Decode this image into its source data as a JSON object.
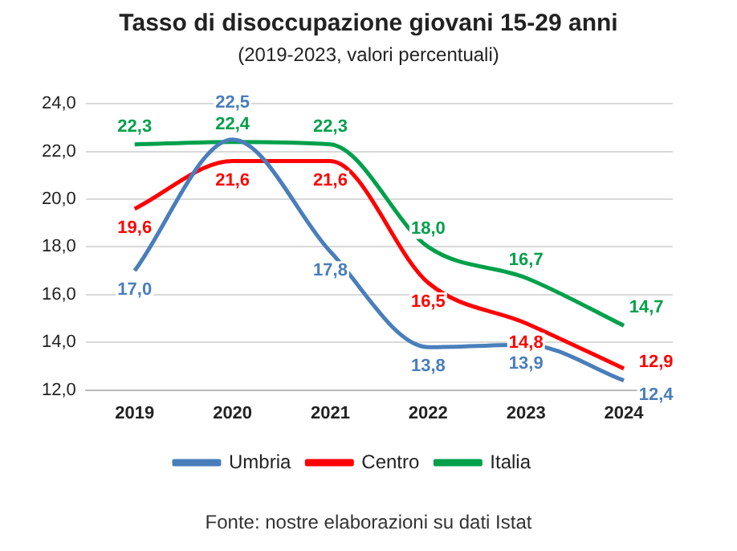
{
  "chart_data": {
    "type": "line",
    "title": "Tasso di disoccupazione giovani 15-29 anni",
    "subtitle": "(2019-2023, valori percentuali)",
    "categories": [
      "2019",
      "2020",
      "2021",
      "2022",
      "2023",
      "2024"
    ],
    "series": [
      {
        "name": "Umbria",
        "color": "#4a7ebb",
        "values": [
          17.0,
          22.5,
          17.8,
          13.8,
          13.9,
          12.4
        ],
        "value_labels": [
          "17,0",
          "22,5",
          "17,8",
          "13,8",
          "13,9",
          "12,4"
        ]
      },
      {
        "name": "Centro",
        "color": "#ff0000",
        "values": [
          19.6,
          21.6,
          21.6,
          16.5,
          14.8,
          12.9
        ],
        "value_labels": [
          "19,6",
          "21,6",
          "21,6",
          "16,5",
          "14,8",
          "12,9"
        ]
      },
      {
        "name": "Italia",
        "color": "#00a04b",
        "values": [
          22.3,
          22.4,
          22.3,
          18.0,
          16.7,
          14.7
        ],
        "value_labels": [
          "22,3",
          "22,4",
          "22,3",
          "18,0",
          "16,7",
          "14,7"
        ]
      }
    ],
    "ylim": [
      12,
      24
    ],
    "yticks": [
      {
        "value": 12,
        "label": "12,0"
      },
      {
        "value": 14,
        "label": "14,0"
      },
      {
        "value": 16,
        "label": "16,0"
      },
      {
        "value": 18,
        "label": "18,0"
      },
      {
        "value": 20,
        "label": "20,0"
      },
      {
        "value": 22,
        "label": "22,0"
      },
      {
        "value": 24,
        "label": "24,0"
      }
    ],
    "grid": "y",
    "legend": "bottom",
    "marker": "none",
    "line_style": "solid",
    "annotations": [
      "Fonte: nostre elaborazioni su dati Istat"
    ]
  }
}
